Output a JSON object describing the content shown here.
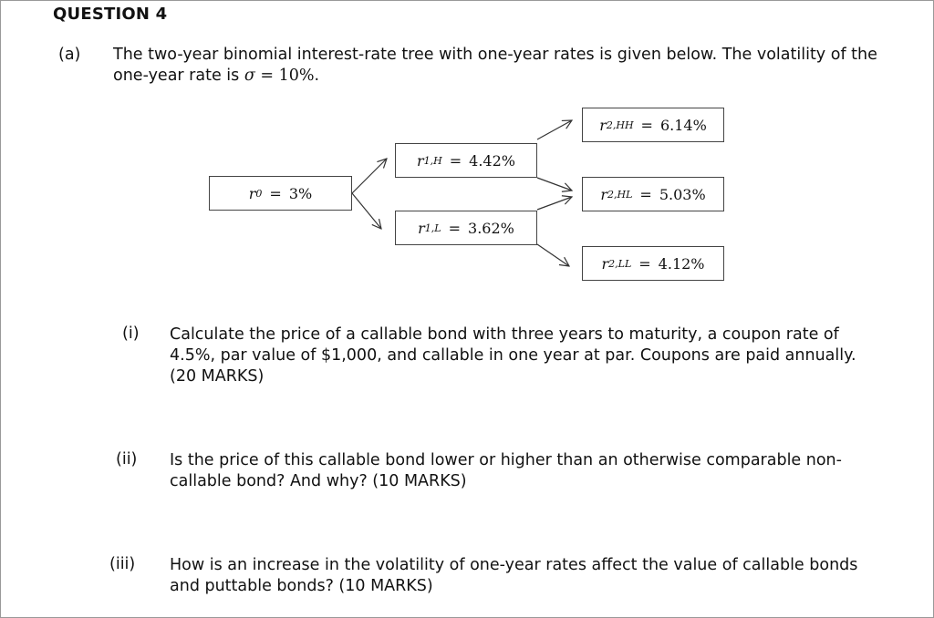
{
  "heading": "QUESTION 4",
  "part_a": {
    "label": "(a)",
    "text_lead": "The two-year binomial interest-rate tree with one-year rates is given below. The volatility of the one-year rate is",
    "sigma_symbol": "σ",
    "sigma_eq": "=",
    "sigma_value": "10%",
    "text_tail": "."
  },
  "tree": {
    "r0": {
      "var": "r",
      "sub": "0",
      "eq": "=",
      "value": "3%"
    },
    "r1H": {
      "var": "r",
      "sub": "1,H",
      "eq": "=",
      "value": "4.42%"
    },
    "r1L": {
      "var": "r",
      "sub": "1,L",
      "eq": "=",
      "value": "3.62%"
    },
    "r2HH": {
      "var": "r",
      "sub": "2,HH",
      "eq": "=",
      "value": "6.14%"
    },
    "r2HL": {
      "var": "r",
      "sub": "2,HL",
      "eq": "=",
      "value": "5.03%"
    },
    "r2LL": {
      "var": "r",
      "sub": "2,LL",
      "eq": "=",
      "value": "4.12%"
    }
  },
  "questions": [
    {
      "label": "(i)",
      "text": "Calculate the price of a callable bond with three years to maturity, a coupon rate of 4.5%, par value of $1,000, and callable in one year at par. Coupons are paid annually. (20 MARKS)"
    },
    {
      "label": "(ii)",
      "text": "Is the price of this callable bond lower or higher than an otherwise comparable non-callable bond? And why? (10 MARKS)"
    },
    {
      "label": "(iii)",
      "text": "How is an increase in the volatility of one-year rates affect the value of callable bonds and puttable bonds? (10 MARKS)"
    }
  ]
}
